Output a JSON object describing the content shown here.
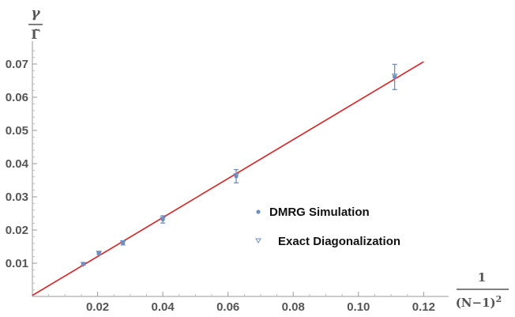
{
  "chart_data": {
    "type": "scatter",
    "title": "",
    "xlabel": {
      "numerator": "1",
      "denominator_base": "(N−1)",
      "denominator_exp": "2"
    },
    "ylabel": {
      "numerator": "γ",
      "denominator": "Γ̃"
    },
    "xlim": [
      0,
      0.125
    ],
    "ylim": [
      0,
      0.075
    ],
    "x_ticks": [
      0.02,
      0.04,
      0.06,
      0.08,
      0.1,
      0.12
    ],
    "x_tick_labels": [
      "0.02",
      "0.04",
      "0.06",
      "0.08",
      "0.10",
      "0.12"
    ],
    "y_ticks": [
      0.01,
      0.02,
      0.03,
      0.04,
      0.05,
      0.06,
      0.07
    ],
    "y_tick_labels": [
      "0.01",
      "0.02",
      "0.03",
      "0.04",
      "0.05",
      "0.06",
      "0.07"
    ],
    "grid": false,
    "legend_position": "center-right",
    "series": [
      {
        "name": "DMRG Simulation",
        "marker": "circle",
        "color": "#6a8fc5",
        "x": [
          0.01563,
          0.02041,
          0.02778,
          0.04,
          0.0625,
          0.1111
        ],
        "y": [
          0.0098,
          0.0131,
          0.0161,
          0.0232,
          0.0362,
          0.0661
        ],
        "err": [
          0.0004,
          0.0005,
          0.0006,
          0.0011,
          0.002,
          0.0038
        ]
      },
      {
        "name": "Exact Diagonalization",
        "marker": "triangle-down",
        "color": "#6a8fc5",
        "x": [
          0.01563,
          0.02041,
          0.02778,
          0.04,
          0.0625,
          0.1111
        ],
        "y": [
          0.0098,
          0.0131,
          0.0163,
          0.0234,
          0.0365,
          0.0665
        ]
      }
    ],
    "fit_line": {
      "color": "#e02020",
      "x": [
        0,
        0.12
      ],
      "y": [
        0.0003,
        0.0707
      ]
    }
  }
}
